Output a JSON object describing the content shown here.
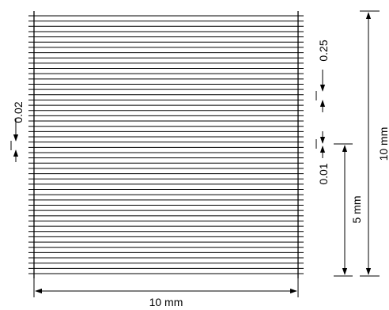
{
  "diagram": {
    "grating_pitch": "0.25",
    "line_gap": "0.02",
    "gap_width": "0.01",
    "total_width": "10 mm",
    "total_height": "10 mm",
    "half_height": "5 mm"
  },
  "colors": {
    "line": "#000000",
    "background": "#ffffff"
  }
}
